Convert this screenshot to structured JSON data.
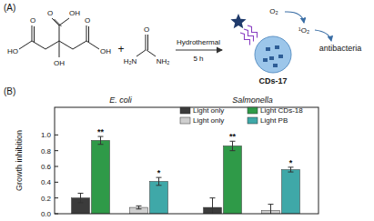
{
  "panel_a": {
    "label": "(A)",
    "citric_acid_labels": [
      "O",
      "OH",
      "OH",
      "O",
      "HO",
      "O",
      "OH"
    ],
    "plus": "+",
    "urea_labels": [
      "O",
      "H₂N",
      "NH₂"
    ],
    "arrow_top": "Hydrothermal",
    "arrow_bottom": "5 h",
    "oxygen": "O₂",
    "singlet_oxygen": "¹O₂",
    "effect": "antibacteria",
    "product": "CDs-17"
  },
  "chart_data": {
    "type": "bar",
    "panel_label": "(B)",
    "y_label": "Growth inhibition",
    "categories": [
      "E. coli",
      "Salmonella"
    ],
    "series": [
      {
        "name": "Light only",
        "color": "#3b3b3b",
        "values": [
          0.2,
          0.08
        ],
        "errors": [
          0.06,
          0.12
        ]
      },
      {
        "name": "Light CDs-18",
        "color": "#2f9a48",
        "values": [
          0.93,
          0.86
        ],
        "errors": [
          0.05,
          0.06
        ],
        "annotations": [
          "**",
          "**"
        ]
      },
      {
        "name": "Light only",
        "color": "#cfcfcf",
        "values": [
          0.08,
          0.04
        ],
        "errors": [
          0.02,
          0.08
        ]
      },
      {
        "name": "Light PB",
        "color": "#3fa8a8",
        "values": [
          0.41,
          0.56
        ],
        "errors": [
          0.05,
          0.03
        ],
        "annotations": [
          "*",
          "*"
        ]
      }
    ],
    "ylim": [
      0,
      1.35
    ],
    "yticks": [
      {
        "value": 0,
        "label": "0.0"
      },
      {
        "value": 0.2,
        "label": "0.2"
      },
      {
        "value": 0.4,
        "label": "0.4"
      },
      {
        "value": 0.6,
        "label": "0.6"
      },
      {
        "value": 0.8,
        "label": "0.8"
      },
      {
        "value": 1,
        "label": "1.0"
      }
    ],
    "legend": "top"
  }
}
